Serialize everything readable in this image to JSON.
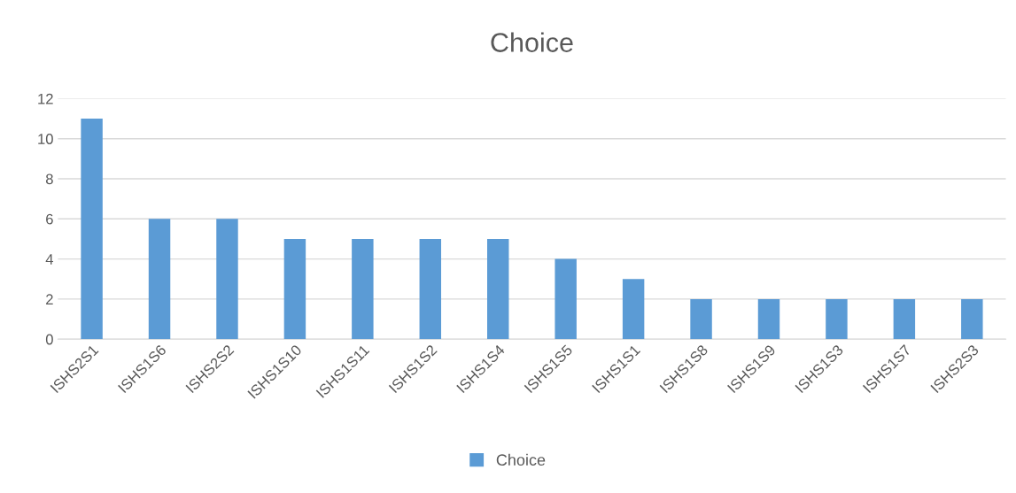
{
  "chart_data": {
    "type": "bar",
    "title": "Choice",
    "categories": [
      "ISHS2S1",
      "ISHS1S6",
      "ISHS2S2",
      "ISHS1S10",
      "ISHS1S11",
      "ISHS1S2",
      "ISHS1S4",
      "ISHS1S5",
      "ISHS1S1",
      "ISHS1S8",
      "ISHS1S9",
      "ISHS1S3",
      "ISHS1S7",
      "ISHS2S3"
    ],
    "series": [
      {
        "name": "Choice",
        "color": "#5b9bd5",
        "values": [
          11,
          6,
          6,
          5,
          5,
          5,
          5,
          4,
          3,
          2,
          2,
          2,
          2,
          2
        ]
      }
    ],
    "ylim": [
      0,
      12
    ],
    "yticks": [
      0,
      2,
      4,
      6,
      8,
      10,
      12
    ],
    "grid": "y",
    "legend": "bottom"
  }
}
